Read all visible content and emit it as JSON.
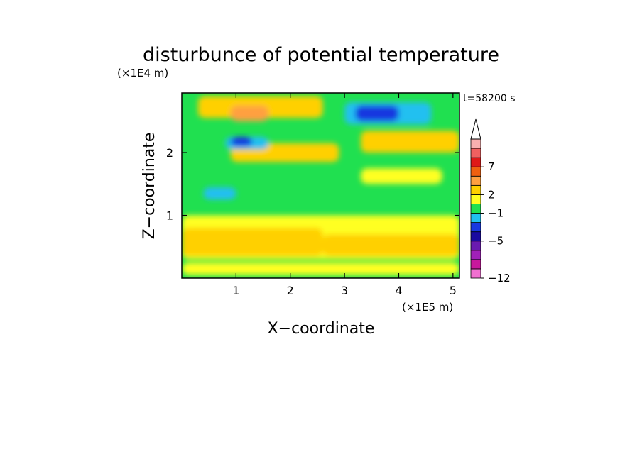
{
  "chart_data": {
    "type": "heatmap",
    "title": "disturbunce of potential temperature",
    "xlabel": "X−coordinate",
    "ylabel": "Z−coordinate",
    "x_unit": "(×1E5 m)",
    "y_unit": "(×1E4 m)",
    "time_label": "t=58200 s",
    "xlim": [
      0,
      5.12
    ],
    "ylim": [
      0,
      2.95
    ],
    "x_ticks": [
      {
        "value": 1,
        "label": "1"
      },
      {
        "value": 2,
        "label": "2"
      },
      {
        "value": 3,
        "label": "3"
      },
      {
        "value": 4,
        "label": "4"
      },
      {
        "value": 5,
        "label": "5"
      }
    ],
    "y_ticks": [
      {
        "value": 1,
        "label": "1"
      },
      {
        "value": 2,
        "label": "2"
      }
    ],
    "colorbar": {
      "levels": [
        {
          "color": "#f070d0"
        },
        {
          "color": "#c8189c"
        },
        {
          "color": "#a020b8"
        },
        {
          "color": "#6a1ab0"
        },
        {
          "color": "#1a0aa0"
        },
        {
          "color": "#1838e0"
        },
        {
          "color": "#20c0f0"
        },
        {
          "color": "#20e050"
        },
        {
          "color": "#ffff20"
        },
        {
          "color": "#ffd000"
        },
        {
          "color": "#ffa040"
        },
        {
          "color": "#f06010"
        },
        {
          "color": "#e01818"
        },
        {
          "color": "#f06060"
        },
        {
          "color": "#f8b0b0"
        }
      ],
      "labels": [
        {
          "value": -12,
          "label": "−12"
        },
        {
          "value": -5,
          "label": "−5"
        },
        {
          "value": -1,
          "label": "−1"
        },
        {
          "value": 2,
          "label": "2"
        },
        {
          "value": 7,
          "label": "7"
        }
      ],
      "extend": "max"
    },
    "field": {
      "background_color": "#20e050",
      "features": [
        {
          "x": [
            0,
            5.12
          ],
          "z": [
            0.05,
            0.25
          ],
          "color": "#ffff20"
        },
        {
          "x": [
            0,
            5.12
          ],
          "z": [
            0.3,
            1.0
          ],
          "color": "#ffff20"
        },
        {
          "x": [
            0,
            2.6
          ],
          "z": [
            0.35,
            0.8
          ],
          "color": "#ffd000"
        },
        {
          "x": [
            2.6,
            5.12
          ],
          "z": [
            0.35,
            0.7
          ],
          "color": "#ffd000"
        },
        {
          "x": [
            0.3,
            2.6
          ],
          "z": [
            2.55,
            2.9
          ],
          "color": "#ffd000"
        },
        {
          "x": [
            0.9,
            1.6
          ],
          "z": [
            2.5,
            2.75
          ],
          "color": "#ffa040"
        },
        {
          "x": [
            0.9,
            2.9
          ],
          "z": [
            1.85,
            2.15
          ],
          "color": "#ffd000"
        },
        {
          "x": [
            3.3,
            5.12
          ],
          "z": [
            2.0,
            2.35
          ],
          "color": "#ffd000"
        },
        {
          "x": [
            0.8,
            1.6
          ],
          "z": [
            2.05,
            2.25
          ],
          "color": "#20c0f0"
        },
        {
          "x": [
            0.9,
            1.3
          ],
          "z": [
            2.1,
            2.25
          ],
          "color": "#1838e0"
        },
        {
          "x": [
            3.0,
            4.6
          ],
          "z": [
            2.45,
            2.8
          ],
          "color": "#20c0f0"
        },
        {
          "x": [
            3.2,
            4.0
          ],
          "z": [
            2.5,
            2.75
          ],
          "color": "#1838e0"
        },
        {
          "x": [
            0.4,
            1.0
          ],
          "z": [
            1.25,
            1.45
          ],
          "color": "#20c0f0"
        },
        {
          "x": [
            3.3,
            4.8
          ],
          "z": [
            1.5,
            1.75
          ],
          "color": "#ffff20"
        }
      ]
    }
  }
}
